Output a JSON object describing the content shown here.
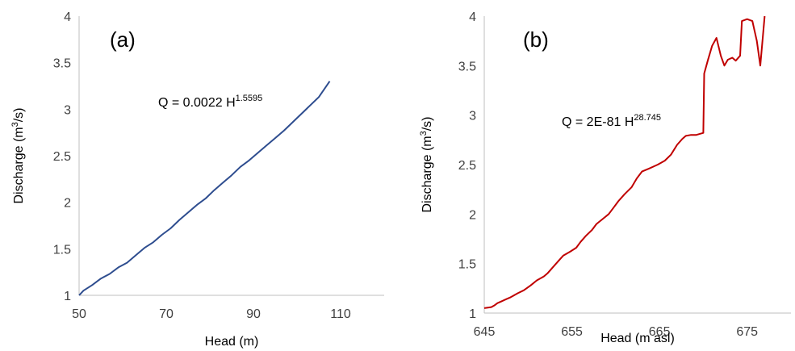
{
  "chart_data": [
    {
      "type": "line",
      "panel_label": "(a)",
      "xlabel": "Head (m)",
      "ylabel_main": "Discharge (m",
      "ylabel_sup": "3",
      "ylabel_tail": "/s)",
      "equation_main": "Q = 0.0022 H",
      "equation_sup": "1.5595",
      "xlim": [
        50,
        120
      ],
      "ylim": [
        1,
        4
      ],
      "xticks": [
        50,
        70,
        90,
        110
      ],
      "yticks": [
        1,
        1.5,
        2,
        2.5,
        3,
        3.5,
        4
      ],
      "grid": false,
      "color": "#2e4d8f",
      "series": [
        {
          "x": [
            50,
            51,
            53,
            55,
            57,
            59,
            61,
            63,
            65,
            67,
            69,
            71,
            73,
            75,
            77,
            79,
            81,
            83,
            85,
            87,
            89,
            91,
            93,
            95,
            97,
            99,
            101,
            103,
            105,
            107.5
          ],
          "values": [
            1.0,
            1.05,
            1.11,
            1.18,
            1.23,
            1.3,
            1.35,
            1.43,
            1.51,
            1.57,
            1.65,
            1.72,
            1.81,
            1.89,
            1.97,
            2.04,
            2.13,
            2.21,
            2.29,
            2.38,
            2.45,
            2.53,
            2.61,
            2.69,
            2.77,
            2.86,
            2.95,
            3.04,
            3.13,
            3.3
          ]
        }
      ]
    },
    {
      "type": "line",
      "panel_label": "(b)",
      "xlabel": "Head (m asl)",
      "ylabel_main": "Discharge (m",
      "ylabel_sup": "3",
      "ylabel_tail": "/s)",
      "equation_main": "Q = 2E-81 H",
      "equation_sup": "28.745",
      "xlim": [
        645,
        680
      ],
      "ylim": [
        1,
        4
      ],
      "xticks": [
        645,
        655,
        665,
        675
      ],
      "yticks": [
        1,
        1.5,
        2,
        2.5,
        3,
        3.5,
        4
      ],
      "grid": false,
      "color": "#c00000",
      "series": [
        {
          "x": [
            645,
            645.8,
            646.2,
            646.5,
            647.0,
            647.5,
            648.0,
            648.8,
            649.5,
            650.3,
            651.0,
            651.8,
            652.2,
            653.2,
            654.0,
            654.8,
            655.5,
            656.0,
            656.6,
            657.3,
            657.8,
            658.5,
            659.2,
            659.8,
            660.3,
            661.0,
            661.8,
            662.4,
            663.0,
            663.8,
            664.8,
            665.6,
            666.3,
            667.0,
            667.6,
            668.0,
            668.6,
            669.2,
            670.0,
            670.1,
            670.5,
            671.0,
            671.5,
            672.0,
            672.4,
            672.8,
            673.3,
            673.7,
            674.2,
            674.4,
            675.0,
            675.6,
            676.1,
            676.5,
            677.0
          ],
          "values": [
            1.05,
            1.06,
            1.08,
            1.1,
            1.12,
            1.14,
            1.16,
            1.2,
            1.23,
            1.28,
            1.33,
            1.37,
            1.4,
            1.5,
            1.58,
            1.62,
            1.66,
            1.72,
            1.78,
            1.84,
            1.9,
            1.95,
            2.0,
            2.07,
            2.13,
            2.2,
            2.27,
            2.36,
            2.43,
            2.46,
            2.5,
            2.54,
            2.6,
            2.7,
            2.76,
            2.79,
            2.8,
            2.8,
            2.82,
            3.42,
            3.55,
            3.7,
            3.78,
            3.6,
            3.5,
            3.56,
            3.58,
            3.55,
            3.6,
            3.95,
            3.97,
            3.95,
            3.75,
            3.5,
            4.0
          ]
        }
      ]
    }
  ]
}
